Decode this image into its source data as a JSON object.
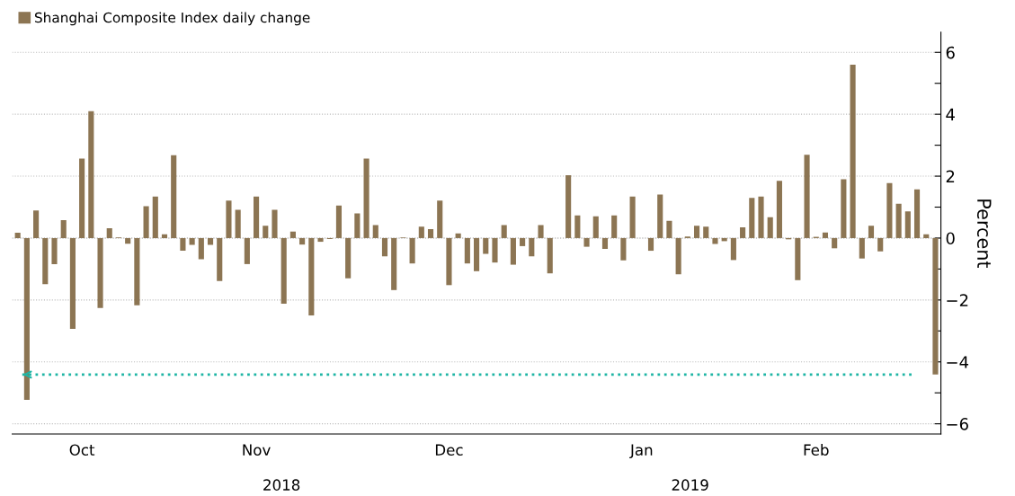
{
  "chart_data": {
    "type": "bar",
    "categories": [
      null,
      null,
      null,
      null,
      null,
      null,
      null,
      "Oct",
      null,
      null,
      null,
      null,
      null,
      null,
      null,
      null,
      null,
      null,
      null,
      null,
      null,
      null,
      null,
      null,
      null,
      null,
      "Nov",
      null,
      null,
      null,
      null,
      null,
      null,
      null,
      null,
      null,
      null,
      null,
      null,
      null,
      null,
      null,
      null,
      null,
      null,
      null,
      null,
      "Dec",
      null,
      null,
      null,
      null,
      null,
      null,
      null,
      null,
      null,
      null,
      null,
      null,
      null,
      null,
      null,
      null,
      null,
      null,
      null,
      null,
      "Jan",
      null,
      null,
      null,
      null,
      null,
      null,
      null,
      null,
      null,
      null,
      null,
      null,
      null,
      null,
      null,
      null,
      null,
      null,
      "Feb",
      null,
      null,
      null,
      null,
      null,
      null,
      null,
      null,
      null,
      null,
      null,
      null,
      null
    ],
    "series": [
      {
        "name": "Shanghai Composite Index daily change",
        "color": "#8c7553",
        "values": [
          0.17,
          -5.23,
          0.89,
          -1.49,
          -0.84,
          0.58,
          -2.93,
          2.57,
          4.1,
          -2.26,
          0.32,
          0.02,
          -0.18,
          -2.17,
          1.03,
          1.34,
          0.12,
          2.68,
          -0.41,
          -0.22,
          -0.68,
          -0.22,
          -1.39,
          1.21,
          0.91,
          -0.84,
          1.34,
          0.4,
          0.91,
          -2.12,
          0.21,
          -0.21,
          -2.5,
          -0.12,
          -0.03,
          1.05,
          -1.3,
          0.8,
          2.57,
          0.42,
          -0.59,
          -1.68,
          0.02,
          -0.82,
          0.37,
          0.29,
          1.21,
          -1.52,
          0.15,
          -0.82,
          -1.07,
          -0.51,
          -0.79,
          0.42,
          -0.86,
          -0.26,
          -0.59,
          0.42,
          -1.14,
          null,
          2.03,
          0.73,
          -0.28,
          0.7,
          -0.35,
          0.73,
          -0.72,
          1.34,
          null,
          -0.41,
          1.41,
          0.56,
          -1.17,
          0.05,
          0.4,
          0.37,
          -0.19,
          -0.1,
          -0.71,
          0.35,
          1.3,
          1.34,
          0.67,
          1.85,
          -0.04,
          -1.36,
          2.69,
          0.04,
          0.18,
          -0.33,
          1.9,
          5.6,
          -0.66,
          0.4,
          -0.43,
          1.78,
          1.11,
          0.86,
          1.57,
          0.12,
          -4.41
        ]
      }
    ],
    "y2label": "Percent",
    "ylim": [
      -6.33,
      6.65
    ],
    "yticks": [
      -6,
      {
        "value": -5,
        "label": null
      },
      -4,
      {
        "value": -3,
        "label": null
      },
      -2,
      {
        "value": -1,
        "label": null
      },
      0,
      {
        "value": 1,
        "label": null
      },
      2,
      {
        "value": 3,
        "label": null
      },
      4,
      {
        "value": 5,
        "label": null
      },
      6
    ],
    "ref_lines": [
      {
        "axis": "y",
        "value": -4.41,
        "color": "#1fb5a5",
        "line_style": "dotted"
      }
    ],
    "annotations": [
      "2018",
      "2019"
    ],
    "grid": "y",
    "legend": "top left"
  }
}
